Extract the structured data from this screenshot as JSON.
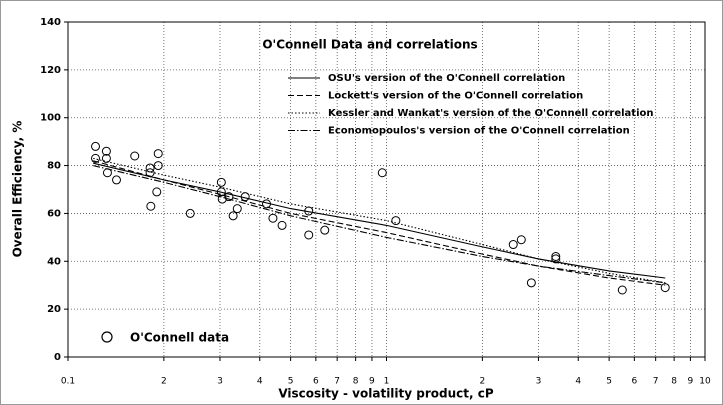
{
  "chart_data": {
    "type": "scatter",
    "title": "O'Connell Data and correlations",
    "x_label": "Viscosity - volatility product, cP",
    "y_label": "Overall Efficiency, %",
    "xscale": "log",
    "xlim": [
      0.1,
      10
    ],
    "ylim": [
      0,
      140
    ],
    "xticks": [
      0.1,
      {
        "value": 0.2,
        "label": "2"
      },
      {
        "value": 0.3,
        "label": "3"
      },
      {
        "value": 0.4,
        "label": "4"
      },
      {
        "value": 0.5,
        "label": "5"
      },
      {
        "value": 0.6,
        "label": "6"
      },
      {
        "value": 0.7,
        "label": "7"
      },
      {
        "value": 0.8,
        "label": "8"
      },
      {
        "value": 0.9,
        "label": "9"
      },
      1,
      2,
      3,
      4,
      5,
      6,
      7,
      8,
      9,
      10
    ],
    "yticks": [
      0,
      20,
      40,
      60,
      80,
      100,
      120,
      140
    ],
    "grid": true,
    "series": [
      {
        "name": "O'Connell data",
        "type": "scatter",
        "color": "#000",
        "x": [
          0.122,
          0.122,
          0.132,
          0.132,
          0.133,
          0.142,
          0.162,
          0.181,
          0.181,
          0.182,
          0.192,
          0.192,
          0.19,
          0.242,
          0.303,
          0.303,
          0.305,
          0.32,
          0.33,
          0.34,
          0.36,
          0.42,
          0.44,
          0.47,
          0.57,
          0.57,
          0.64,
          0.97,
          1.07,
          2.5,
          2.65,
          2.85,
          3.4,
          3.4,
          5.5,
          7.5
        ],
        "values": [
          88,
          83,
          86,
          83,
          77,
          74,
          84,
          79,
          77,
          63,
          85,
          80,
          69,
          60,
          73,
          69,
          66,
          67,
          59,
          62,
          67,
          64,
          58,
          55,
          61,
          51,
          53,
          77,
          57,
          47,
          49,
          31,
          42,
          41,
          28,
          29
        ]
      },
      {
        "name": "OSU's version of the O'Connell correlation",
        "type": "line",
        "style": "solid",
        "color": "#000",
        "x": [
          0.12,
          0.2,
          0.3,
          0.5,
          1,
          2,
          3,
          5,
          7.5
        ],
        "values": [
          81,
          74,
          69,
          62,
          55,
          46,
          41,
          36,
          33
        ]
      },
      {
        "name": "Lockett's version of the O'Connell correlation",
        "type": "line",
        "style": "dashed",
        "color": "#000",
        "x": [
          0.12,
          0.2,
          0.3,
          0.5,
          1,
          2,
          3,
          5,
          7.5
        ],
        "values": [
          82,
          74,
          68,
          60,
          52,
          43,
          38,
          33,
          30
        ]
      },
      {
        "name": "Kessler and Wankat's version of the O'Connell correlation",
        "type": "line",
        "style": "dotted",
        "color": "#000",
        "x": [
          0.12,
          0.2,
          0.3,
          0.5,
          1,
          2,
          3,
          5,
          7.5
        ],
        "values": [
          83,
          76,
          71,
          64,
          57,
          47,
          41,
          35,
          31
        ]
      },
      {
        "name": "Economopoulos's version of the O'Connell correlation",
        "type": "line",
        "style": "dashdot",
        "color": "#000",
        "x": [
          0.12,
          0.2,
          0.3,
          0.5,
          1,
          2,
          3,
          5,
          7.5
        ],
        "values": [
          80,
          73,
          67,
          59,
          50,
          42,
          38,
          34,
          31
        ]
      }
    ]
  }
}
